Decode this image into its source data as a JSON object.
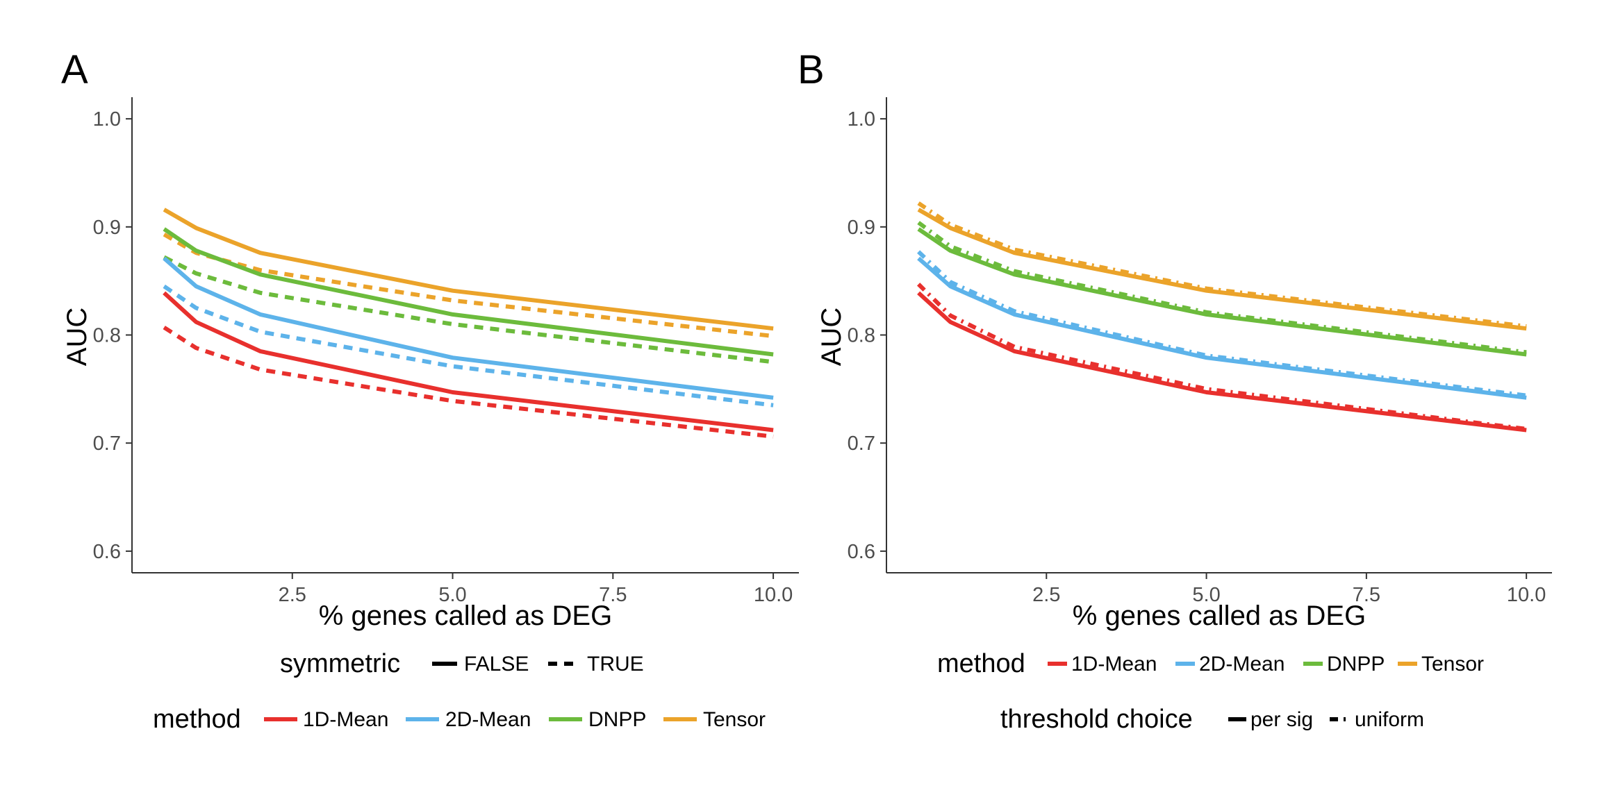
{
  "chart_data": [
    {
      "panel": "A",
      "type": "line",
      "xlabel": "% genes called as DEG",
      "ylabel": "AUC",
      "xlim": [
        0,
        10.4
      ],
      "ylim": [
        0.58,
        1.02
      ],
      "xticks": [
        "2.5",
        "5.0",
        "7.5",
        "10.0"
      ],
      "yticks": [
        "0.6",
        "0.7",
        "0.8",
        "0.9",
        "1.0"
      ],
      "grid": false,
      "x": [
        0.5,
        1,
        2,
        5,
        10
      ],
      "series": [
        {
          "name": "1D-Mean",
          "linetype": "FALSE",
          "color": "#e8302d",
          "values": [
            0.839,
            0.812,
            0.785,
            0.747,
            0.712
          ]
        },
        {
          "name": "1D-Mean",
          "linetype": "TRUE",
          "color": "#e8302d",
          "values": [
            0.807,
            0.788,
            0.768,
            0.739,
            0.706
          ]
        },
        {
          "name": "2D-Mean",
          "linetype": "FALSE",
          "color": "#5db3ea",
          "values": [
            0.871,
            0.845,
            0.819,
            0.779,
            0.742
          ]
        },
        {
          "name": "2D-Mean",
          "linetype": "TRUE",
          "color": "#5db3ea",
          "values": [
            0.845,
            0.825,
            0.803,
            0.771,
            0.735
          ]
        },
        {
          "name": "DNPP",
          "linetype": "FALSE",
          "color": "#6cbb3c",
          "values": [
            0.898,
            0.878,
            0.856,
            0.819,
            0.782
          ]
        },
        {
          "name": "DNPP",
          "linetype": "TRUE",
          "color": "#6cbb3c",
          "values": [
            0.872,
            0.857,
            0.839,
            0.81,
            0.775
          ]
        },
        {
          "name": "Tensor",
          "linetype": "FALSE",
          "color": "#eba32a",
          "values": [
            0.916,
            0.899,
            0.876,
            0.841,
            0.806
          ]
        },
        {
          "name": "Tensor",
          "linetype": "TRUE",
          "color": "#eba32a",
          "values": [
            0.893,
            0.876,
            0.86,
            0.832,
            0.799
          ]
        }
      ],
      "legends": [
        {
          "title": "symmetric",
          "items": [
            {
              "label": "FALSE",
              "dash": "solid"
            },
            {
              "label": "TRUE",
              "dash": "dashed"
            }
          ]
        },
        {
          "title": "method",
          "items": [
            {
              "label": "1D-Mean",
              "color": "#e8302d"
            },
            {
              "label": "2D-Mean",
              "color": "#5db3ea"
            },
            {
              "label": "DNPP",
              "color": "#6cbb3c"
            },
            {
              "label": "Tensor",
              "color": "#eba32a"
            }
          ]
        }
      ]
    },
    {
      "panel": "B",
      "type": "line",
      "xlabel": "% genes called as DEG",
      "ylabel": "AUC",
      "xlim": [
        0,
        10.4
      ],
      "ylim": [
        0.58,
        1.02
      ],
      "xticks": [
        "2.5",
        "5.0",
        "7.5",
        "10.0"
      ],
      "yticks": [
        "0.6",
        "0.7",
        "0.8",
        "0.9",
        "1.0"
      ],
      "grid": false,
      "x": [
        0.5,
        1,
        2,
        5,
        10
      ],
      "series": [
        {
          "name": "1D-Mean",
          "linetype": "per sig",
          "color": "#e8302d",
          "values": [
            0.839,
            0.812,
            0.785,
            0.747,
            0.712
          ]
        },
        {
          "name": "1D-Mean",
          "linetype": "uniform",
          "color": "#e8302d",
          "values": [
            0.847,
            0.818,
            0.789,
            0.75,
            0.713
          ]
        },
        {
          "name": "2D-Mean",
          "linetype": "per sig",
          "color": "#5db3ea",
          "values": [
            0.871,
            0.845,
            0.819,
            0.779,
            0.742
          ]
        },
        {
          "name": "2D-Mean",
          "linetype": "uniform",
          "color": "#5db3ea",
          "values": [
            0.877,
            0.849,
            0.822,
            0.781,
            0.744
          ]
        },
        {
          "name": "DNPP",
          "linetype": "per sig",
          "color": "#6cbb3c",
          "values": [
            0.898,
            0.878,
            0.856,
            0.819,
            0.782
          ]
        },
        {
          "name": "DNPP",
          "linetype": "uniform",
          "color": "#6cbb3c",
          "values": [
            0.904,
            0.882,
            0.859,
            0.821,
            0.784
          ]
        },
        {
          "name": "Tensor",
          "linetype": "per sig",
          "color": "#eba32a",
          "values": [
            0.916,
            0.899,
            0.876,
            0.841,
            0.806
          ]
        },
        {
          "name": "Tensor",
          "linetype": "uniform",
          "color": "#eba32a",
          "values": [
            0.922,
            0.902,
            0.879,
            0.843,
            0.808
          ]
        }
      ],
      "legends": [
        {
          "title": "method",
          "items": [
            {
              "label": "1D-Mean",
              "color": "#e8302d"
            },
            {
              "label": "2D-Mean",
              "color": "#5db3ea"
            },
            {
              "label": "DNPP",
              "color": "#6cbb3c"
            },
            {
              "label": "Tensor",
              "color": "#eba32a"
            }
          ]
        },
        {
          "title": "threshold choice",
          "items": [
            {
              "label": "per sig",
              "dash": "solid"
            },
            {
              "label": "uniform",
              "dash": "dotted"
            }
          ]
        }
      ]
    }
  ]
}
